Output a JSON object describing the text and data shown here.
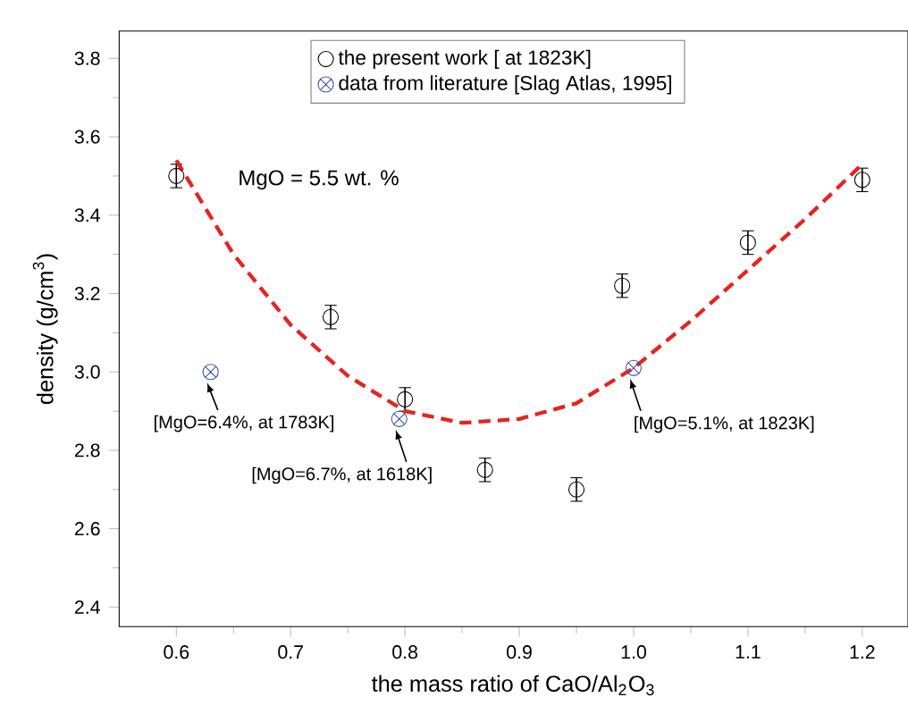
{
  "chart_data": {
    "type": "scatter",
    "xlabel": "the mass ratio of CaO/Al$_{2}$O$_{3}$",
    "ylabel": "density (g/cm$^{3}$)",
    "xlim": [
      0.55,
      1.24
    ],
    "ylim": [
      2.35,
      3.87
    ],
    "xticks": [
      0.6,
      0.7,
      0.8,
      0.9,
      {
        "value": 1.0,
        "label": "1.0"
      },
      1.1,
      1.2
    ],
    "yticks": [
      2.4,
      2.6,
      2.8,
      {
        "value": 3.0,
        "label": "3.0"
      },
      3.2,
      3.4,
      3.6,
      3.8
    ],
    "legend": "top",
    "grid": false,
    "series": [
      {
        "name": "the present work [ at 1823K]",
        "color": "#000000",
        "marker": "circle",
        "x": [
          0.6,
          0.735,
          0.8,
          0.87,
          0.95,
          0.99,
          1.1,
          1.2
        ],
        "values": [
          3.5,
          3.14,
          2.93,
          2.75,
          2.7,
          3.22,
          3.33,
          3.49
        ],
        "errors": [
          0.03,
          0.03,
          0.03,
          0.03,
          0.03,
          0.03,
          0.03,
          0.03
        ]
      },
      {
        "name": "data from literature [Slag Atlas, 1995]",
        "color": "#3a4fc0",
        "marker": "cross",
        "x": [
          0.63,
          0.795,
          1.0
        ],
        "values": [
          3.0,
          2.88,
          3.01
        ]
      },
      {
        "type": "line",
        "color": "#e8221e",
        "line_style": "dashed",
        "marker": "none",
        "x": [
          0.6,
          0.65,
          0.7,
          0.75,
          0.8,
          0.85,
          0.9,
          0.95,
          1.0,
          1.05,
          1.1,
          1.15,
          1.2
        ],
        "values": [
          3.54,
          3.3,
          3.12,
          2.99,
          2.9,
          2.87,
          2.88,
          2.92,
          3.01,
          3.13,
          3.26,
          3.39,
          3.53
        ]
      }
    ],
    "annotations": [
      "MgO = 5.5 wt. %",
      {
        "text": "[MgO=6.4%, at 1783K]",
        "x": 0.63,
        "y": 3.0
      },
      {
        "text": "[MgO=6.7%, at 1618K]",
        "x": 0.795,
        "y": 2.88
      },
      {
        "text": "[MgO=5.1%, at 1823K]",
        "x": 1.0,
        "y": 3.01
      }
    ]
  }
}
